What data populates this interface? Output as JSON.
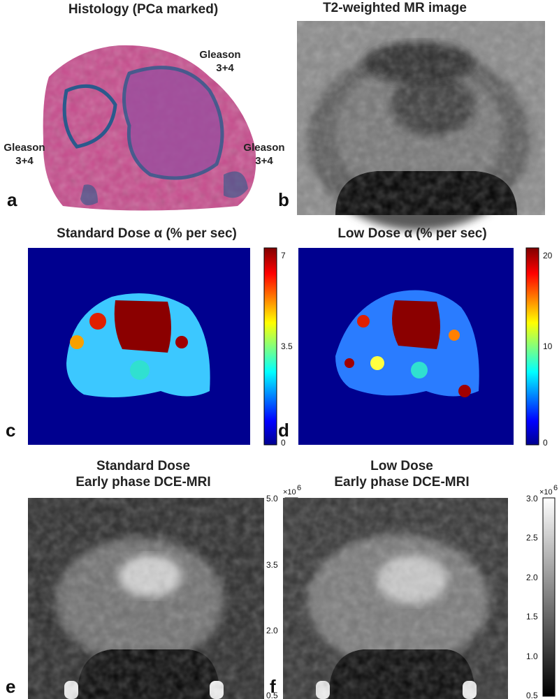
{
  "panels": [
    {
      "letter": "a",
      "title": "Histology (PCa marked)",
      "annotations": [
        [
          "Gleason",
          "3+4"
        ],
        [
          "Gleason",
          "3+4"
        ],
        [
          "Gleason",
          "3+4"
        ]
      ]
    },
    {
      "letter": "b",
      "title": "T2-weighted MR image"
    },
    {
      "letter": "c",
      "title": "Standard Dose α (% per sec)",
      "colorbar_ticks": [
        "7",
        "3.5",
        "0"
      ]
    },
    {
      "letter": "d",
      "title": "Low Dose α (% per sec)",
      "colorbar_ticks": [
        "20",
        "10",
        "0"
      ]
    },
    {
      "letter": "e",
      "title": [
        "Standard Dose",
        "Early phase DCE-MRI"
      ],
      "colorbar_multiplier": {
        "base": "×10",
        "exponent": "6"
      },
      "colorbar_ticks": [
        "5.0",
        "3.5",
        "2.0",
        "0.5"
      ]
    },
    {
      "letter": "f",
      "title": [
        "Low Dose",
        "Early phase DCE-MRI"
      ],
      "colorbar_multiplier": {
        "base": "×10",
        "exponent": "6"
      },
      "colorbar_ticks": [
        "3.0",
        "2.5",
        "2.0",
        "1.5",
        "1.0",
        "0.5"
      ]
    }
  ]
}
